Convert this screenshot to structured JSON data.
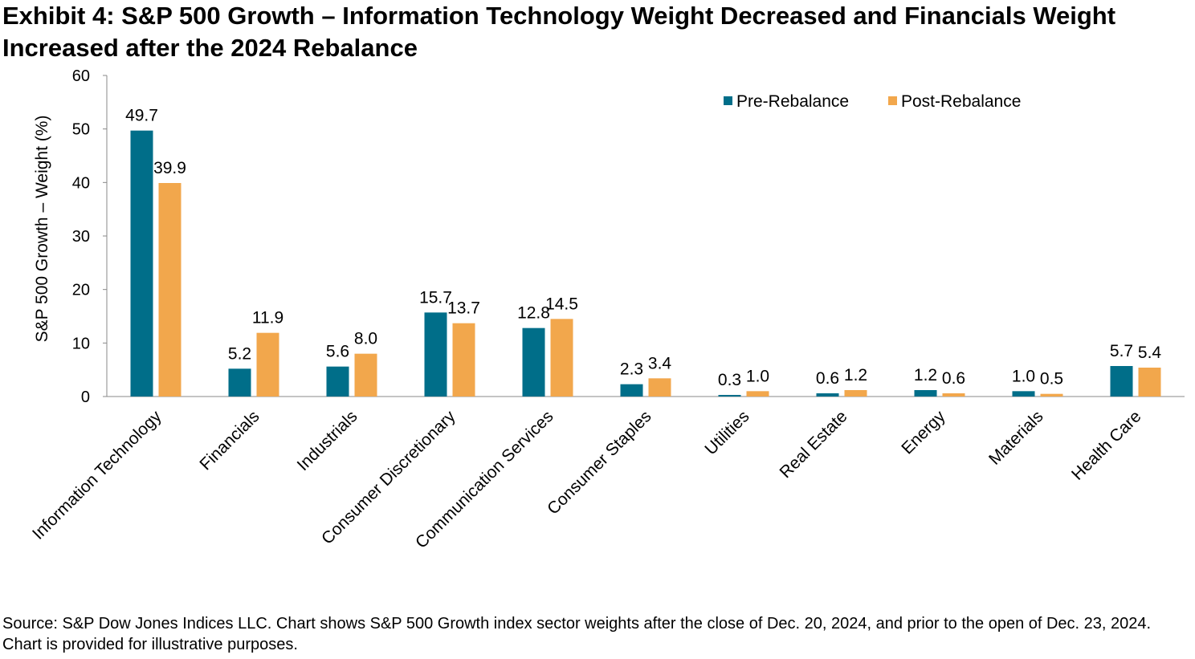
{
  "title": "Exhibit 4: S&P 500 Growth – Information Technology Weight Decreased and Financials Weight Increased after the 2024 Rebalance",
  "source": "Source: S&P Dow Jones Indices LLC. Chart shows S&P 500 Growth index sector weights after the close of Dec. 20, 2024, and prior to the open of Dec. 23, 2024. Chart is provided for illustrative purposes.",
  "chart_data": {
    "type": "bar",
    "title": "Exhibit 4: S&P 500 Growth – Information Technology Weight Decreased and Financials Weight Increased after the 2024 Rebalance",
    "xlabel": "",
    "ylabel": "S&P 500 Growth – Weight (%)",
    "ylim": [
      0,
      60
    ],
    "yticks": [
      "0",
      "10",
      "20",
      "30",
      "40",
      "50",
      "60"
    ],
    "grid": false,
    "legend_position": "top-right",
    "categories": [
      "Information Technology",
      "Financials",
      "Industrials",
      "Consumer Discretionary",
      "Communication Services",
      "Consumer Staples",
      "Utilities",
      "Real Estate",
      "Energy",
      "Materials",
      "Health Care"
    ],
    "series": [
      {
        "name": "Pre-Rebalance",
        "color": "#006E89",
        "values": [
          49.7,
          5.2,
          5.6,
          15.7,
          12.8,
          2.3,
          0.3,
          0.6,
          1.2,
          1.0,
          5.7
        ]
      },
      {
        "name": "Post-Rebalance",
        "color": "#F2A74C",
        "values": [
          39.9,
          11.9,
          8.0,
          13.7,
          14.5,
          3.4,
          1.0,
          1.2,
          0.6,
          0.5,
          5.4
        ]
      }
    ]
  }
}
